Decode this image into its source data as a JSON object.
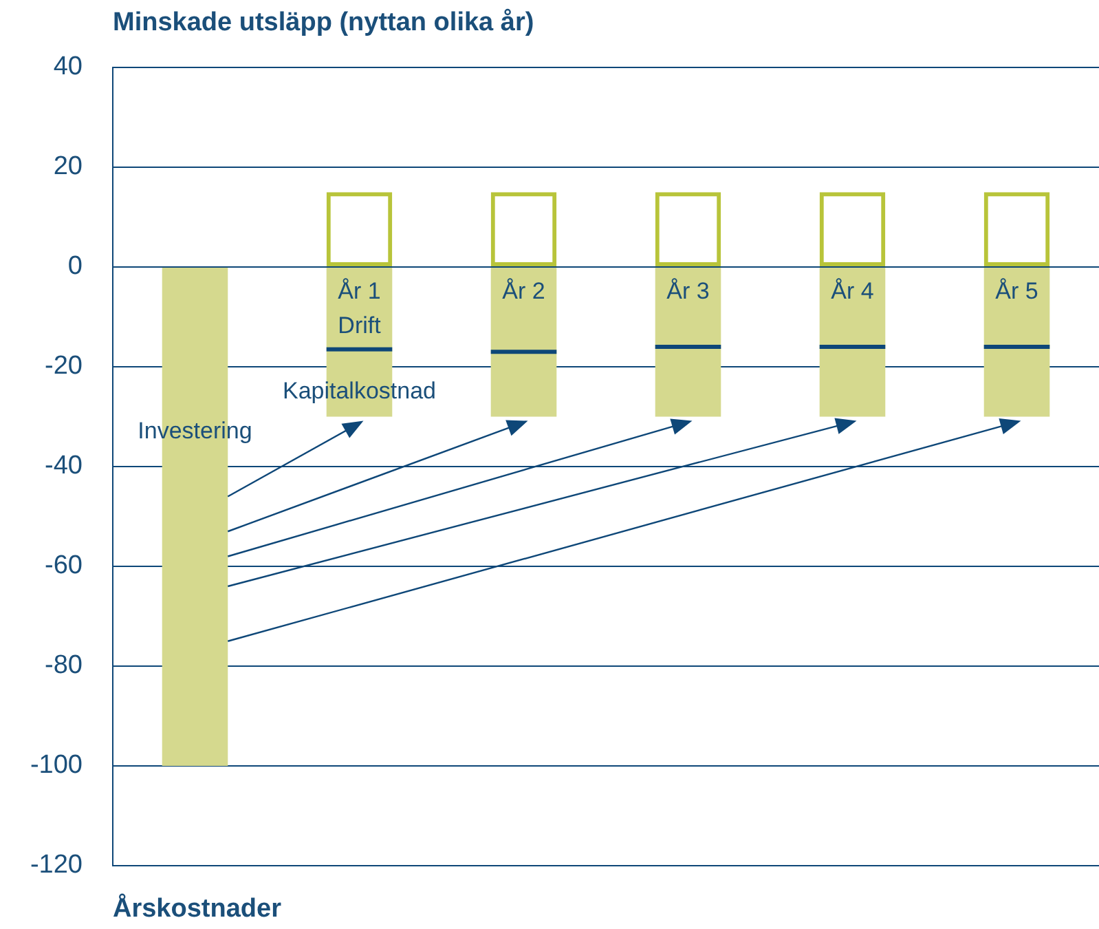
{
  "chart_data": {
    "type": "bar",
    "title": "Minskade utsläpp (nyttan olika år)",
    "xlabel": "Årskostnader",
    "categories": [
      null,
      "År 1",
      "År 2",
      "År 3",
      "År 4",
      "År 5"
    ],
    "stacked": true,
    "ylim": [
      -120,
      40
    ],
    "yticks": [
      -120,
      -100,
      -80,
      -60,
      -40,
      -20,
      0,
      20,
      40
    ],
    "grid": "y",
    "legend": false,
    "series": [
      {
        "name": "Investering",
        "color": "#d5d98e",
        "values": [
          -100,
          null,
          null,
          null,
          null,
          null
        ]
      },
      {
        "name": "Drift",
        "color": "#d5d98e",
        "values": [
          null,
          -16.5,
          -17,
          -16,
          -16,
          -16
        ]
      },
      {
        "name": "Kapitalkostnad",
        "color": "#d5d98e",
        "values": [
          null,
          -13.5,
          -13,
          -14,
          -14,
          -14
        ]
      },
      {
        "color": "#b8c43a",
        "values": [
          null,
          15,
          15,
          15,
          15,
          15
        ]
      }
    ]
  }
}
